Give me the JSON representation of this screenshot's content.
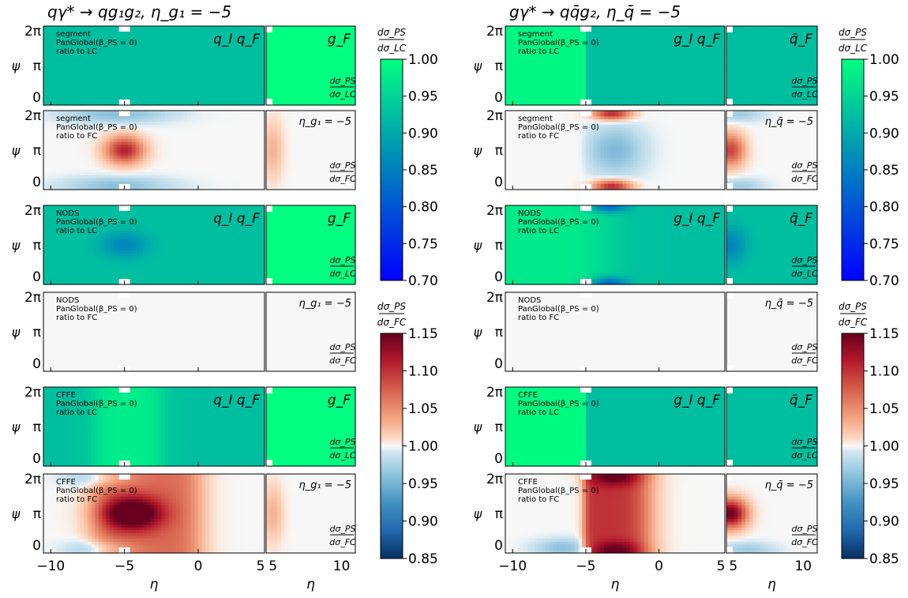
{
  "figure": {
    "columns": [
      {
        "title": "qγ* → qg₁g₂, η_g₁ = −5",
        "main_label": "q_I q_F",
        "side_label": "g_F",
        "eta_label": "η_g₁ = −5"
      },
      {
        "title": "gγ* → qq̄g₂, η_q̄ = −5",
        "main_label": "g_I q_F",
        "side_label": "q̄_F",
        "eta_label": "η_q̄ = −5"
      }
    ],
    "row_texts": [
      {
        "scheme": "segment",
        "shower": "PanGlobal(β_PS = 0)",
        "ratio": "ratio to LC",
        "side": "dσ_PS / dσ_LC"
      },
      {
        "scheme": "segment",
        "shower": "PanGlobal(β_PS = 0)",
        "ratio": "ratio to FC",
        "side": "dσ_PS / dσ_FC"
      },
      {
        "scheme": "NODS",
        "shower": "PanGlobal(β_PS = 0)",
        "ratio": "ratio to LC",
        "side": "dσ_PS / dσ_LC"
      },
      {
        "scheme": "NODS",
        "shower": "PanGlobal(β_PS = 0)",
        "ratio": "ratio to FC",
        "side": "dσ_PS / dσ_FC"
      },
      {
        "scheme": "CFFE",
        "shower": "PanGlobal(β_PS = 0)",
        "ratio": "ratio to LC",
        "side": "dσ_PS / dσ_LC"
      },
      {
        "scheme": "CFFE",
        "shower": "PanGlobal(β_PS = 0)",
        "ratio": "ratio to FC",
        "side": "dσ_PS / dσ_FC"
      }
    ],
    "y_axis_label": "ψ",
    "y_ticks": [
      "0",
      "π",
      "2π"
    ],
    "x_axis_label": "η",
    "x_ticks_main": [
      "−10",
      "−5",
      "0",
      "5"
    ],
    "x_ticks_side": [
      "5",
      "10"
    ]
  },
  "colorbars": [
    {
      "label": "dσ_PS / dσ_LC",
      "cmap": "winter",
      "range": [
        0.7,
        1.0
      ],
      "ticks": [
        "1.00",
        "0.95",
        "0.90",
        "0.85",
        "0.80",
        "0.75",
        "0.70"
      ]
    },
    {
      "label": "dσ_PS / dσ_FC",
      "cmap": "RdBu_r",
      "range": [
        0.85,
        1.15
      ],
      "ticks": [
        "1.15",
        "1.10",
        "1.05",
        "1.00",
        "0.95",
        "0.90",
        "0.85"
      ]
    }
  ],
  "chart_data": {
    "type": "heatmap",
    "x_range_main": [
      -10.5,
      4.5
    ],
    "x_range_side": [
      4.5,
      11
    ],
    "y_range": [
      0,
      6.2832
    ],
    "panels_per_row": 2,
    "rows": 6,
    "columns": 2,
    "approx_values": {
      "col1": [
        {
          "main": "≈0.93 uniform",
          "side": "≈1.00 uniform"
        },
        {
          "main": "peak ≈1.10 at (η=−5, ψ=π); blue ≈0.96 lobes near ψ=0,2π",
          "side": "≈1.00 with faint red edge near η=5"
        },
        {
          "main": "≈0.93 with dip ≈0.86 near (η=−5, ψ=π)",
          "side": "≈1.00 uniform"
        },
        {
          "main": "≈1.00 uniform",
          "side": "≈1.00 uniform"
        },
        {
          "main": "≈0.98 band for −7<η<−2, ≈0.93 elsewhere",
          "side": "≈1.00 uniform"
        },
        {
          "main": "peak ≈1.15 at (η=−4, ψ=π); red band −7<η<0",
          "side": "≈1.00 with faint red near η=5"
        }
      ],
      "col2": [
        {
          "main": "≈1.00 for η<−5, ≈0.93 for η>−5",
          "side": "≈0.93 uniform"
        },
        {
          "main": "red ≈1.10 near ψ=0,2π at η≈−3; blue ≈0.96 around ψ=π for −5<η<−1",
          "side": "red ≈1.08 at (η=5, ψ=π)"
        },
        {
          "main": "≈0.97 greenish for η<−4; ≈0.93 elsewhere; dips ≈0.80 near (η=−4, ψ=0,2π)",
          "side": "≈0.90 dip near (η=5, ψ=π)"
        },
        {
          "main": "≈1.00 uniform",
          "side": "≈1.00 uniform"
        },
        {
          "main": "≈1.00 for η<−5, ≈0.93 for η>−5",
          "side": "≈0.93 uniform"
        },
        {
          "main": "red ≈1.15 band −5<η<−1, strongest near ψ=0,2π",
          "side": "red ≈1.15 at (η=5, ψ=π)"
        }
      ]
    }
  }
}
